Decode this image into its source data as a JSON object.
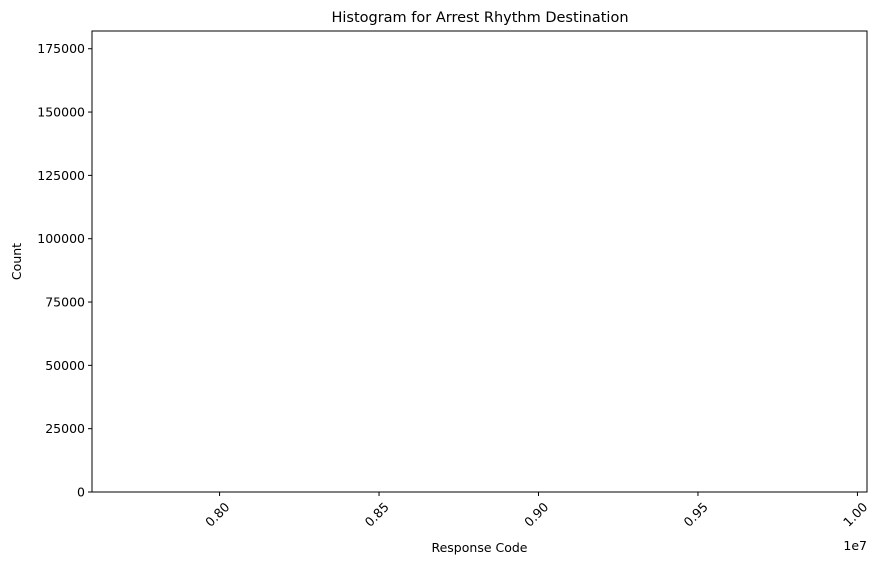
{
  "chart_data": {
    "type": "bar",
    "title": "Histogram for Arrest Rhythm Destination",
    "xlabel": "Response Code",
    "ylabel": "Count",
    "x_offset_label": "1e7",
    "x_scale_factor": 10000000,
    "xlim": [
      7600000,
      10030000
    ],
    "ylim": [
      0,
      182000
    ],
    "x_ticks": [
      {
        "value": 8000000,
        "label": "0.80"
      },
      {
        "value": 8500000,
        "label": "0.85"
      },
      {
        "value": 9000000,
        "label": "0.90"
      },
      {
        "value": 9500000,
        "label": "0.95"
      },
      {
        "value": 10000000,
        "label": "1.00"
      }
    ],
    "y_ticks": [
      {
        "value": 0,
        "label": "0"
      },
      {
        "value": 25000,
        "label": "25000"
      },
      {
        "value": 50000,
        "label": "50000"
      },
      {
        "value": 75000,
        "label": "75000"
      },
      {
        "value": 100000,
        "label": "100000"
      },
      {
        "value": 125000,
        "label": "125000"
      },
      {
        "value": 150000,
        "label": "150000"
      },
      {
        "value": 175000,
        "label": "175000"
      }
    ],
    "x_tick_rotation": 45,
    "bars": [],
    "grid": false,
    "legend": "none",
    "colors": {
      "axis": "#000000",
      "background": "#ffffff"
    }
  }
}
